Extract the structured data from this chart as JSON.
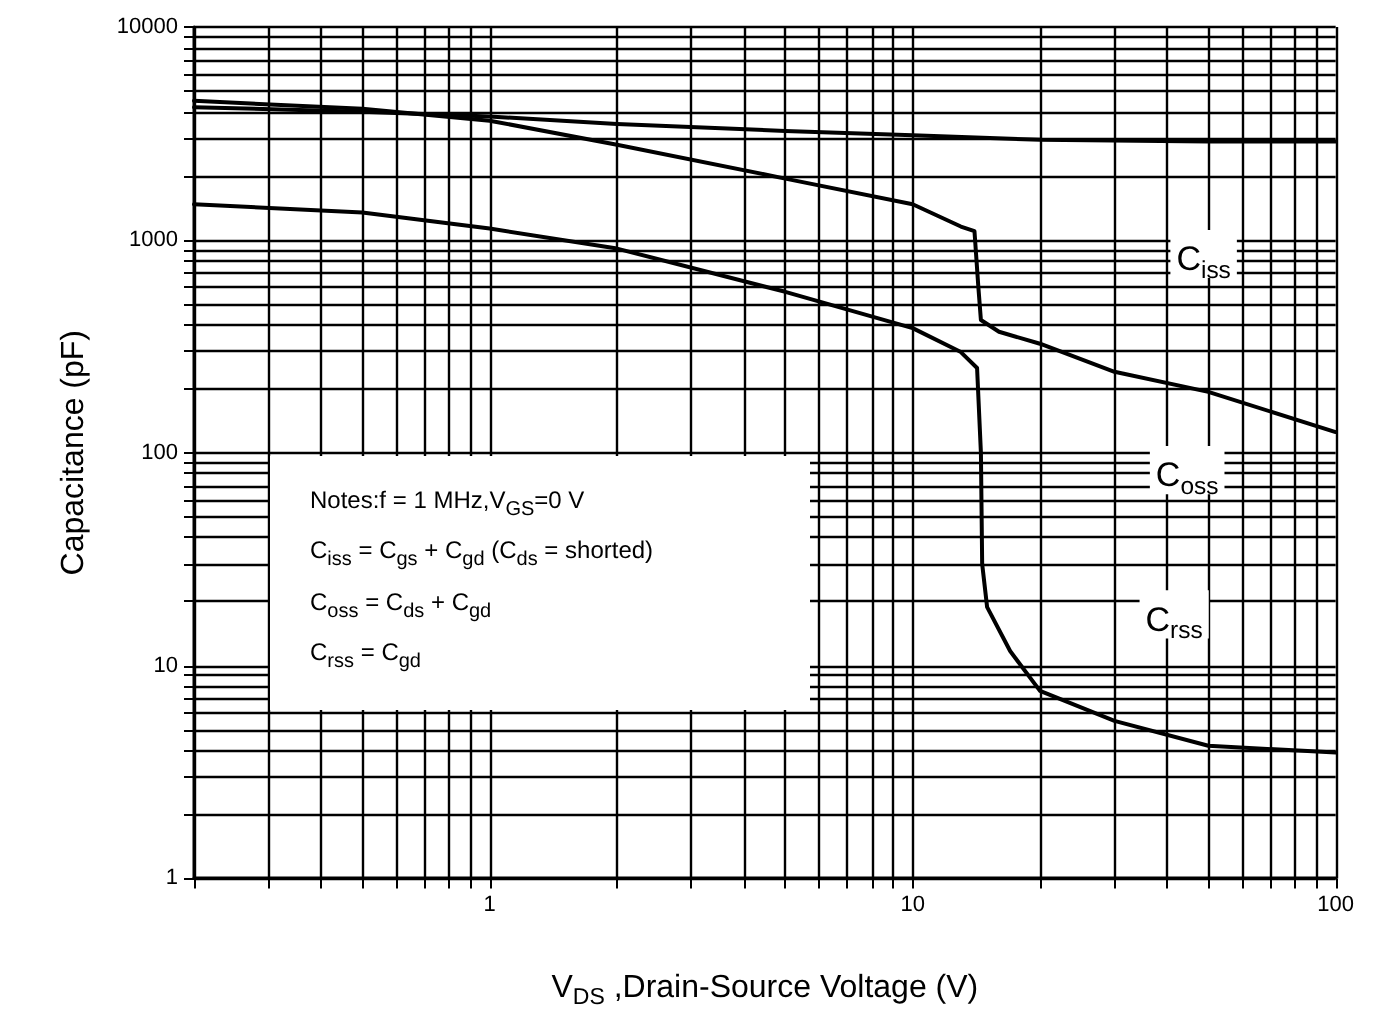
{
  "chart_data": {
    "type": "line",
    "xlabel": "V$_{DS}$ ,Drain-Source Voltage (V)",
    "ylabel": "Capacitance (pF)",
    "log": "xy",
    "grid": true,
    "legend": false,
    "marker": "none",
    "line_style": "solid",
    "xlim": [
      0.2,
      100
    ],
    "xticks": [
      {
        "value": 0.2,
        "label": null
      },
      {
        "value": 0.3,
        "label": null
      },
      {
        "value": 0.4,
        "label": null
      },
      {
        "value": 0.5,
        "label": null
      },
      {
        "value": 0.6,
        "label": null
      },
      {
        "value": 0.7,
        "label": null
      },
      {
        "value": 0.8,
        "label": null
      },
      {
        "value": 0.9,
        "label": null
      },
      1,
      {
        "value": 2,
        "label": null
      },
      {
        "value": 3,
        "label": null
      },
      {
        "value": 4,
        "label": null
      },
      {
        "value": 5,
        "label": null
      },
      {
        "value": 6,
        "label": null
      },
      {
        "value": 7,
        "label": null
      },
      {
        "value": 8,
        "label": null
      },
      {
        "value": 9,
        "label": null
      },
      10,
      {
        "value": 20,
        "label": null
      },
      {
        "value": 30,
        "label": null
      },
      {
        "value": 40,
        "label": null
      },
      {
        "value": 50,
        "label": null
      },
      {
        "value": 60,
        "label": null
      },
      {
        "value": 70,
        "label": null
      },
      {
        "value": 80,
        "label": null
      },
      {
        "value": 90,
        "label": null
      },
      100
    ],
    "ylim": [
      1,
      10000
    ],
    "yticks": [
      1,
      {
        "value": 2,
        "label": null
      },
      {
        "value": 3,
        "label": null
      },
      {
        "value": 4,
        "label": null
      },
      {
        "value": 5,
        "label": null
      },
      {
        "value": 6,
        "label": null
      },
      {
        "value": 7,
        "label": null
      },
      {
        "value": 8,
        "label": null
      },
      {
        "value": 9,
        "label": null
      },
      10,
      {
        "value": 20,
        "label": null
      },
      {
        "value": 30,
        "label": null
      },
      {
        "value": 40,
        "label": null
      },
      {
        "value": 50,
        "label": null
      },
      {
        "value": 60,
        "label": null
      },
      {
        "value": 70,
        "label": null
      },
      {
        "value": 80,
        "label": null
      },
      {
        "value": 90,
        "label": null
      },
      100,
      {
        "value": 200,
        "label": null
      },
      {
        "value": 300,
        "label": null
      },
      {
        "value": 400,
        "label": null
      },
      {
        "value": 500,
        "label": null
      },
      {
        "value": 600,
        "label": null
      },
      {
        "value": 700,
        "label": null
      },
      {
        "value": 800,
        "label": null
      },
      {
        "value": 900,
        "label": null
      },
      1000,
      {
        "value": 2000,
        "label": null
      },
      {
        "value": 3000,
        "label": null
      },
      {
        "value": 4000,
        "label": null
      },
      {
        "value": 5000,
        "label": null
      },
      {
        "value": 6000,
        "label": null
      },
      {
        "value": 7000,
        "label": null
      },
      {
        "value": 8000,
        "label": null
      },
      {
        "value": 9000,
        "label": null
      },
      10000
    ],
    "series": [
      {
        "name": "C$_{iss}$",
        "color": "#000000",
        "x": [
          0.2,
          0.5,
          1,
          2,
          5,
          10,
          20,
          50,
          100
        ],
        "values": [
          4200,
          4000,
          3800,
          3500,
          3250,
          3100,
          2950,
          2900,
          2900
        ]
      },
      {
        "name": "C$_{oss}$",
        "color": "#000000",
        "x": [
          0.2,
          0.5,
          1,
          2,
          5,
          10,
          13,
          14,
          14.3,
          14.5,
          16,
          20,
          30,
          50,
          100
        ],
        "values": [
          4500,
          4130,
          3630,
          2800,
          1940,
          1470,
          1155,
          1100,
          600,
          420,
          370,
          325,
          240,
          193,
          125
        ]
      },
      {
        "name": "C$_{rss}$",
        "color": "#000000",
        "x": [
          0.2,
          0.5,
          1,
          2,
          5,
          10,
          13,
          14.2,
          14.5,
          14.6,
          15,
          17,
          20,
          30,
          50,
          100
        ],
        "values": [
          1470,
          1345,
          1130,
          910,
          570,
          385,
          297,
          250,
          100,
          30,
          18.8,
          11.7,
          7.6,
          5.5,
          4.2,
          3.9
        ]
      }
    ],
    "annotations": [
      "Notes:f = 1 MHz,V$_{GS}$=0 V",
      "C$_{iss}$ = C$_{gs}$ + C$_{gd}$ (C$_{ds}$ = shorted)",
      "C$_{oss}$ = C$_{ds}$ + C$_{gd}$",
      "C$_{rss}$ = C$_{gd}$"
    ]
  }
}
